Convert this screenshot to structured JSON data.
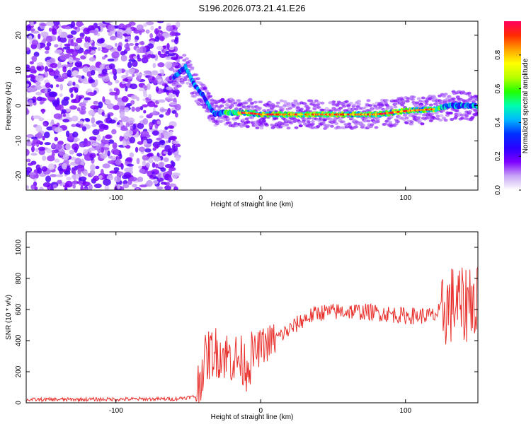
{
  "title": "S196.2026.073.21.41.E26",
  "chart_data": [
    {
      "type": "heatmap",
      "xlabel": "Height of straight line (km)",
      "ylabel": "Frequency (Hz)",
      "xlim": [
        -162,
        150
      ],
      "ylim": [
        -24,
        24
      ],
      "xticks": [
        -100,
        0,
        100
      ],
      "xtick_labels": [
        "-100",
        "0",
        "100"
      ],
      "yticks": [
        -20,
        -10,
        0,
        10,
        20
      ],
      "ytick_labels": [
        "-20",
        "-10",
        "0",
        "10",
        "20"
      ],
      "noise_region_x": [
        -162,
        -57
      ],
      "feature_ridge": {
        "x": [
          -60,
          -52,
          -46,
          -40,
          -36,
          -32,
          -26,
          -20,
          -10,
          0,
          20,
          40,
          60,
          80,
          100,
          120,
          130,
          140,
          150
        ],
        "y": [
          8,
          11,
          6,
          3,
          0,
          -2.5,
          -2,
          -2,
          -2,
          -2.5,
          -2.5,
          -2.5,
          -2.5,
          -2.5,
          -1.5,
          -1,
          0,
          0,
          0
        ]
      },
      "colorbar": {
        "label": "Normalized spectral amplitude",
        "range": [
          0,
          1
        ],
        "ticks": [
          0.0,
          0.2,
          0.4,
          0.6,
          0.8
        ],
        "tick_labels": [
          "0.0",
          "0.2",
          "0.4",
          "0.6",
          "0.8"
        ],
        "colors": [
          "#ffffff",
          "#c9a6f5",
          "#7e00ff",
          "#2a00ff",
          "#0030ff",
          "#00b8ff",
          "#00ffb0",
          "#22ff00",
          "#b8ff00",
          "#ffff00",
          "#ffa000",
          "#ff2a00",
          "#ff0060"
        ]
      }
    },
    {
      "type": "line",
      "xlabel": "Height of straight line (km)",
      "ylabel": "SNR (10 * v/v)",
      "xlim": [
        -162,
        150
      ],
      "ylim": [
        0,
        1100
      ],
      "xticks": [
        -100,
        0,
        100
      ],
      "xtick_labels": [
        "-100",
        "0",
        "100"
      ],
      "yticks": [
        0,
        200,
        400,
        600,
        800,
        1000
      ],
      "ytick_labels": [
        "0",
        "200",
        "400",
        "600",
        "800",
        "1000"
      ],
      "series": [
        {
          "name": "SNR",
          "color": "#e8312d",
          "x": [
            -162,
            -60,
            -45,
            -40,
            -35,
            -30,
            -25,
            -20,
            -15,
            -10,
            -5,
            0,
            10,
            20,
            30,
            40,
            60,
            80,
            100,
            120,
            125,
            130,
            135,
            140,
            145,
            150
          ],
          "y": [
            20,
            25,
            40,
            240,
            320,
            330,
            310,
            290,
            280,
            240,
            310,
            360,
            410,
            470,
            540,
            580,
            590,
            580,
            560,
            560,
            600,
            620,
            650,
            600,
            700,
            620
          ]
        }
      ]
    }
  ]
}
